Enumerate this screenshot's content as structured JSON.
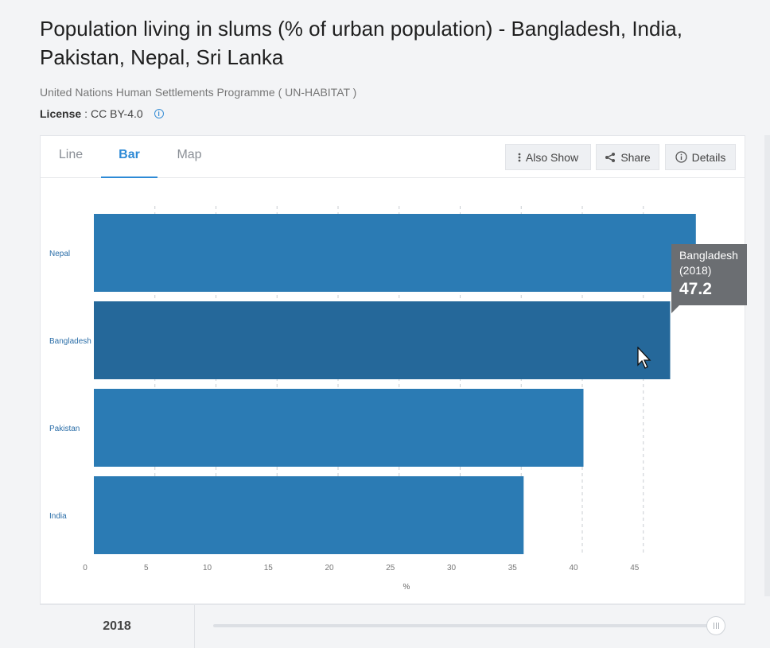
{
  "page": {
    "title": "Population living in slums (% of urban population) - Bangladesh, India, Pakistan, Nepal, Sri Lanka",
    "source": "United Nations Human Settlements Programme ( UN-HABITAT )",
    "license_label": "License",
    "license_value": "CC BY-4.0"
  },
  "tabs": [
    {
      "label": "Line",
      "active": false
    },
    {
      "label": "Bar",
      "active": true
    },
    {
      "label": "Map",
      "active": false
    }
  ],
  "toolbar": {
    "also_show_label": "Also Show",
    "share_label": "Share",
    "details_label": "Details"
  },
  "tooltip": {
    "name": "Bangladesh",
    "year": "(2018)",
    "value": "47.2"
  },
  "timeline": {
    "selected_year": "2018",
    "position_fraction": 1.0
  },
  "colors": {
    "bar": "#2b7bb4",
    "bar_hover": "#25689a",
    "accent": "#2d8ad6",
    "tooltip_bg": "#6b6e72"
  },
  "chart_data": {
    "type": "bar",
    "orientation": "horizontal",
    "categories": [
      "Nepal",
      "Bangladesh",
      "Pakistan",
      "India"
    ],
    "values": [
      49.3,
      47.2,
      40.1,
      35.2
    ],
    "highlighted": "Bangladesh",
    "xlabel": "%",
    "xlim": [
      0,
      50
    ],
    "xticks": [
      "0",
      "5",
      "10",
      "15",
      "20",
      "25",
      "30",
      "35",
      "40",
      "45"
    ],
    "grid": true
  }
}
